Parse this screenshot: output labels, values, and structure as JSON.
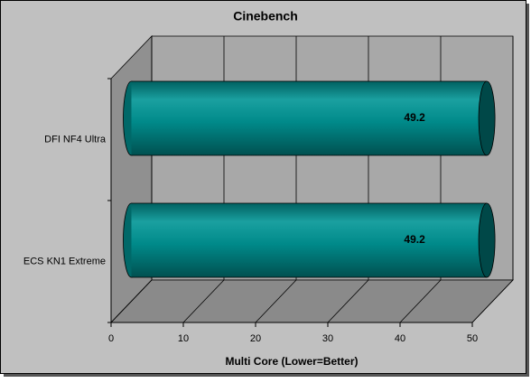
{
  "chart_data": {
    "type": "bar",
    "title": "Cinebench",
    "x_label": "Multi Core (Lower=Better)",
    "categories": [
      "DFI NF4 Ultra",
      "ECS KN1 Extreme"
    ],
    "values": [
      49.2,
      49.2
    ],
    "color": "#008080",
    "xlim": [
      0,
      50
    ],
    "xticks": [
      0,
      10,
      20,
      30,
      40,
      50
    ],
    "grid": true,
    "orientation": "horizontal"
  }
}
